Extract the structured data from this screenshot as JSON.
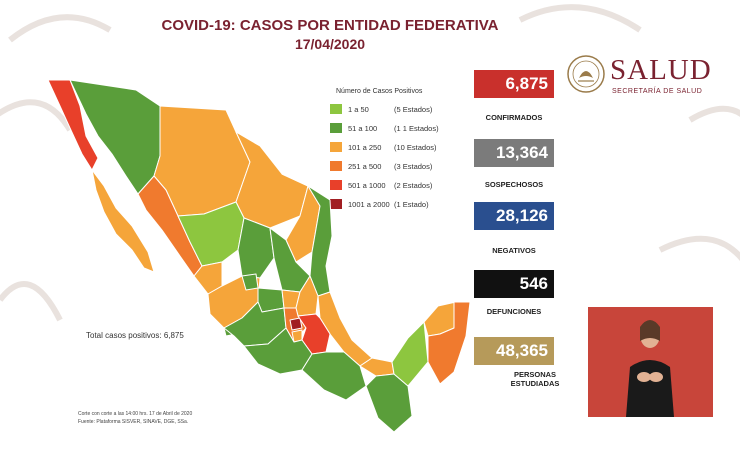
{
  "header": {
    "title": "COVID-19: CASOS POR ENTIDAD FEDERATIVA",
    "date": "17/04/2020"
  },
  "logo": {
    "name": "SALUD",
    "subtitle": "SECRETARÍA DE SALUD"
  },
  "legend": {
    "heading": "Número de Casos Positivos",
    "items": [
      {
        "range": "1 a 50",
        "count": "(5 Estados)",
        "color": "#8dc63f"
      },
      {
        "range": "51 a 100",
        "count": "(1 1 Estados)",
        "color": "#5a9e3a"
      },
      {
        "range": "101 a 250",
        "count": "(10 Estados)",
        "color": "#f5a53a"
      },
      {
        "range": "251 a 500",
        "count": "(3 Estados)",
        "color": "#f07a2e"
      },
      {
        "range": "501 a 1000",
        "count": "(2 Estados)",
        "color": "#e8402a"
      },
      {
        "range": "1001 a 2000",
        "count": "(1 Estado)",
        "color": "#a11e22"
      }
    ]
  },
  "stats": [
    {
      "value": "6,875",
      "label": "CONFIRMADOS",
      "color": "#c9302c"
    },
    {
      "value": "13,364",
      "label": "SOSPECHOSOS",
      "color": "#7b7b7b"
    },
    {
      "value": "28,126",
      "label": "NEGATIVOS",
      "color": "#2a4f8f"
    },
    {
      "value": "546",
      "label": "DEFUNCIONES",
      "color": "#111111"
    },
    {
      "value": "48,365",
      "label": "PERSONAS ESTUDIADAS",
      "color": "#b69a5a"
    }
  ],
  "total_text": "Total casos positivos: 6,875",
  "footnote": {
    "line1": "Corte con corte a las 14:00 hrs. 17 de Abril de 2020",
    "line2": "Fuente: Plataforma SISVER, SINAVE, DGE, SSa."
  }
}
